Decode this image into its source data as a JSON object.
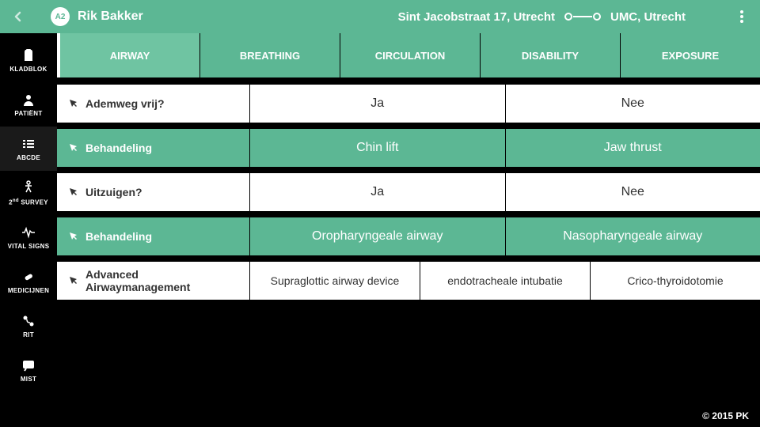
{
  "header": {
    "avatar_label": "A2",
    "patient_name": "Rik Bakker",
    "origin": "Sint Jacobstraat 17, Utrecht",
    "destination": "UMC, Utrecht"
  },
  "sidebar": {
    "items": [
      {
        "label": "KLADBLOK"
      },
      {
        "label": "PATIËNT"
      },
      {
        "label": "ABCDE"
      },
      {
        "label": "2nd SURVEY"
      },
      {
        "label": "VITAL SIGNS"
      },
      {
        "label": "MEDICIJNEN"
      },
      {
        "label": "RIT"
      },
      {
        "label": "MIST"
      }
    ],
    "active_index": 2
  },
  "tabs": {
    "items": [
      "AIRWAY",
      "BREATHING",
      "CIRCULATION",
      "DISABILITY",
      "EXPOSURE"
    ],
    "active_index": 0
  },
  "rows": [
    {
      "label": "Ademweg vrij?",
      "style": "white",
      "opt_style": "white",
      "options": [
        "Ja",
        "Nee"
      ]
    },
    {
      "label": "Behandeling",
      "style": "green",
      "opt_style": "green",
      "options": [
        "Chin lift",
        "Jaw thrust"
      ]
    },
    {
      "label": "Uitzuigen?",
      "style": "white",
      "opt_style": "white",
      "options": [
        "Ja",
        "Nee"
      ]
    },
    {
      "label": "Behandeling",
      "style": "green",
      "opt_style": "green",
      "options": [
        "Oropharyngeale airway",
        "Nasopharyngeale airway"
      ]
    },
    {
      "label": "Advanced Airwaymanagement",
      "style": "white",
      "opt_style": "white",
      "small": true,
      "options": [
        "Supraglottic airway device",
        "endotracheale intubatie",
        "Crico-thyroidotomie"
      ]
    }
  ],
  "footer": {
    "copyright": "© 2015 PK"
  }
}
